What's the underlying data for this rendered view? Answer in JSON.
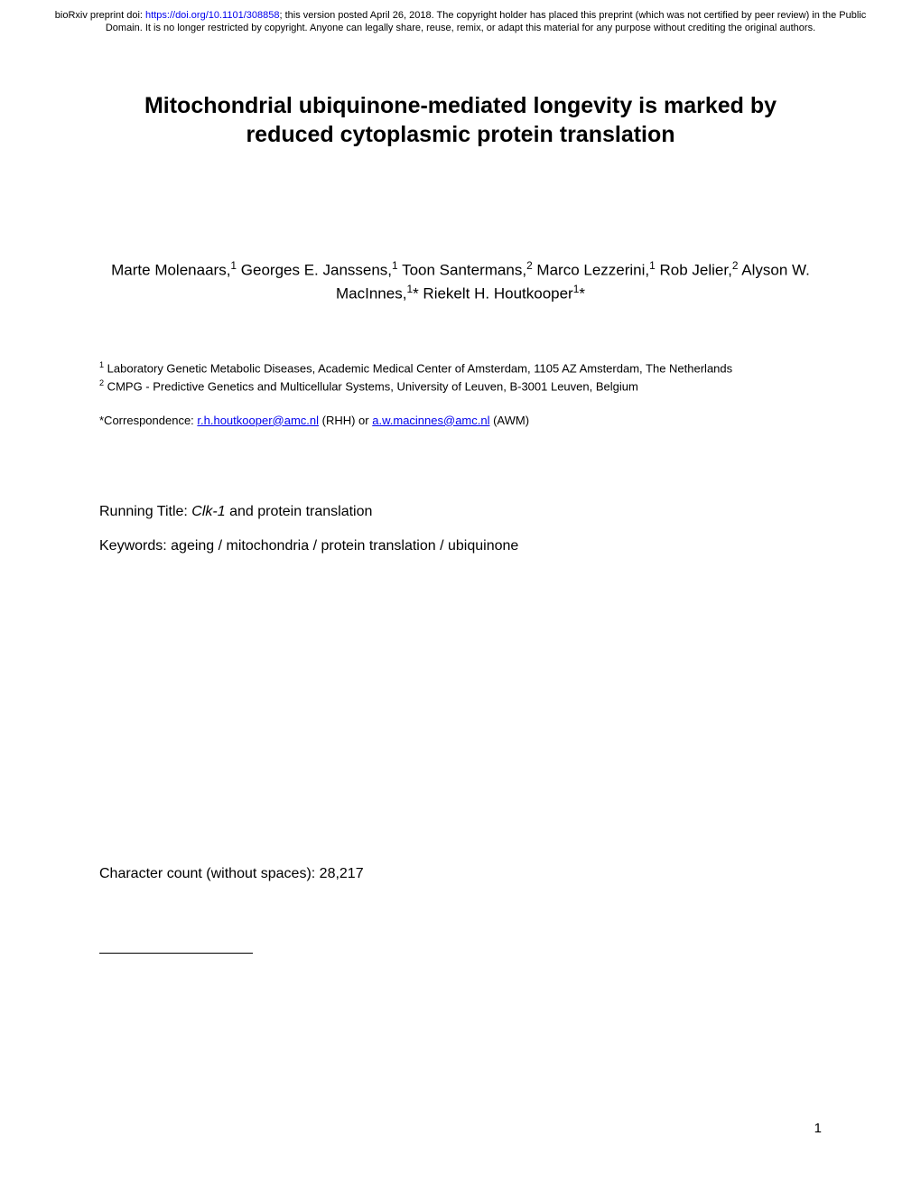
{
  "header": {
    "prefix": "bioRxiv preprint doi: ",
    "doi_link": "https://doi.org/10.1101/308858",
    "suffix": "; this version posted April 26, 2018. The copyright holder has placed this preprint (which was not certified by peer review) in the Public Domain. It is no longer restricted by copyright. Anyone can legally share, reuse, remix, or adapt this material for any purpose without crediting the original authors."
  },
  "title": "Mitochondrial ubiquinone-mediated longevity is marked by reduced cytoplasmic protein translation",
  "authors": [
    {
      "name": "Marte Molenaars,",
      "sup": "1"
    },
    {
      "name": " Georges E. Janssens,",
      "sup": "1"
    },
    {
      "name": " Toon Santermans,",
      "sup": "2"
    },
    {
      "name": " Marco Lezzerini,",
      "sup": "1"
    },
    {
      "name": " Rob Jelier,",
      "sup": "2"
    },
    {
      "name": " Alyson W. MacInnes,",
      "sup": "1",
      "suffix": "*"
    },
    {
      "name": " Riekelt H. Houtkooper",
      "sup": "1",
      "suffix": "*"
    }
  ],
  "affiliations": [
    {
      "sup": "1",
      "text": " Laboratory Genetic Metabolic Diseases, Academic Medical Center of Amsterdam, 1105 AZ Amsterdam, The Netherlands"
    },
    {
      "sup": "2",
      "text": " CMPG - Predictive Genetics and Multicellular Systems, University of Leuven, B-3001 Leuven, Belgium"
    }
  ],
  "correspondence": {
    "prefix": "*Correspondence: ",
    "email1": "r.h.houtkooper@amc.nl",
    "mid1": " (RHH) or ",
    "email2": "a.w.macinnes@amc.nl",
    "mid2": " (AWM)"
  },
  "running_title": {
    "label": "Running Title: ",
    "italic": "Clk-1",
    "rest": " and protein translation"
  },
  "keywords": "Keywords: ageing / mitochondria / protein translation / ubiquinone",
  "char_count": "Character count (without spaces): 28,217",
  "page_number": "1"
}
